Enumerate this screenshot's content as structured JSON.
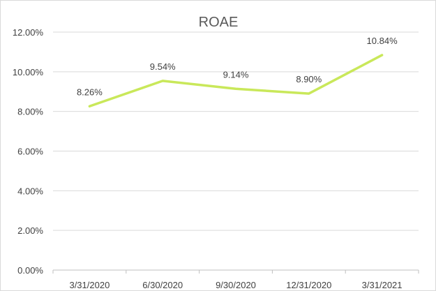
{
  "chart_data": {
    "type": "line",
    "title": "ROAE",
    "categories": [
      "3/31/2020",
      "6/30/2020",
      "9/30/2020",
      "12/31/2020",
      "3/31/2021"
    ],
    "series": [
      {
        "values": [
          8.26,
          9.54,
          9.14,
          8.9,
          10.84
        ],
        "data_labels": [
          "8.26%",
          "9.54%",
          "9.14%",
          "8.90%",
          "10.84%"
        ],
        "color": "#c9e85a"
      }
    ],
    "y_ticks": [
      "0.00%",
      "2.00%",
      "4.00%",
      "6.00%",
      "8.00%",
      "10.00%",
      "12.00%"
    ],
    "y_tick_values": [
      0,
      2,
      4,
      6,
      8,
      10,
      12
    ],
    "ylim": [
      0,
      12
    ],
    "grid": true,
    "legend": "none",
    "xlabel": "",
    "ylabel": ""
  }
}
